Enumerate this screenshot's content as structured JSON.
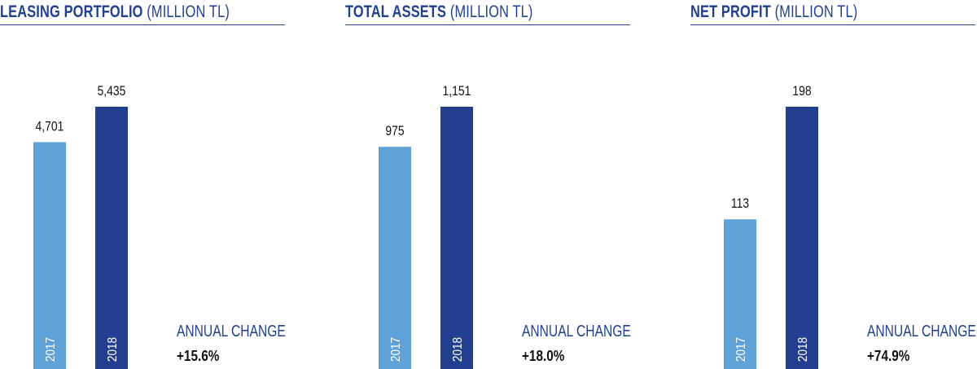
{
  "colors": {
    "bar_2017": "#5fa3d9",
    "bar_2018": "#22408f",
    "title": "#22408f",
    "text": "#111111",
    "bar_label": "#ffffff"
  },
  "annual_change_label": "ANNUAL CHANGE",
  "panels": [
    {
      "title_bold": "LEASING PORTFOLIO",
      "title_unit": "(MILLION TL)",
      "annual_change": "+15.6%"
    },
    {
      "title_bold": "TOTAL ASSETS",
      "title_unit": "(MILLION TL)",
      "annual_change": "+18.0%"
    },
    {
      "title_bold": "NET PROFIT",
      "title_unit": "(MILLION TL)",
      "annual_change": "+74.9%"
    }
  ],
  "chart_data": [
    {
      "type": "bar",
      "title": "LEASING PORTFOLIO (MILLION TL)",
      "categories": [
        "2017",
        "2018"
      ],
      "values": [
        4701,
        5435
      ],
      "value_labels": [
        "4,701",
        "5,435"
      ]
    },
    {
      "type": "bar",
      "title": "TOTAL ASSETS (MILLION TL)",
      "categories": [
        "2017",
        "2018"
      ],
      "values": [
        975,
        1151
      ],
      "value_labels": [
        "975",
        "1,151"
      ]
    },
    {
      "type": "bar",
      "title": "NET PROFIT (MILLION TL)",
      "categories": [
        "2017",
        "2018"
      ],
      "values": [
        113,
        198
      ],
      "value_labels": [
        "113",
        "198"
      ]
    }
  ]
}
